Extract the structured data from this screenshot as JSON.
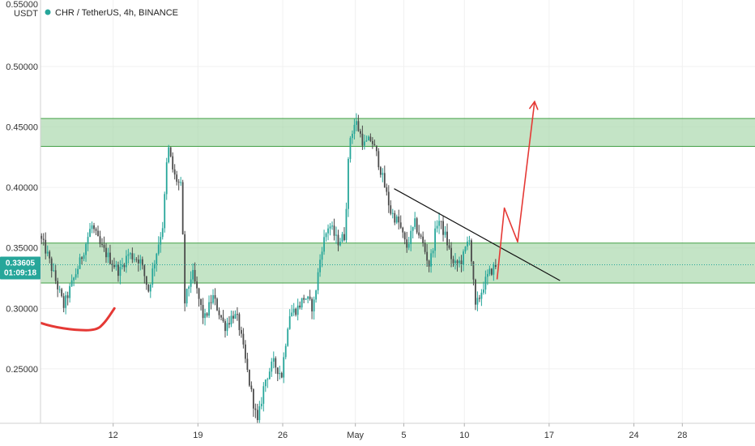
{
  "symbol_title": "CHR / TetherUS, 4h, BINANCE",
  "y_axis_unit": "USDT",
  "y_axis_top_label": "0.55000",
  "current_price": "0.33605",
  "countdown": "01:09:18",
  "colors": {
    "up": "#26a69a",
    "down": "#4a4a4a",
    "zone_fill": "#a5d6a7",
    "zone_line": "#43a047",
    "price_tag": "#26a69a",
    "trendline": "#111111",
    "arrow": "#e53935"
  },
  "chart_data": {
    "type": "candlestick",
    "title": "CHR / TetherUS, 4h, BINANCE",
    "ylabel": "USDT",
    "ylim": [
      0.205,
      0.555
    ],
    "y_ticks": [
      0.25,
      0.3,
      0.35,
      0.4,
      0.45,
      0.5
    ],
    "y_tick_labels": [
      "0.25000",
      "0.30000",
      "0.35000",
      "0.40000",
      "0.45000",
      "0.50000"
    ],
    "x_ticks": [
      "12",
      "19",
      "26",
      "May",
      "5",
      "10",
      "17",
      "24",
      "28"
    ],
    "x_tick_days": [
      12,
      19,
      26,
      32,
      36,
      41,
      48,
      55,
      59
    ],
    "x_range_days": [
      6.0,
      65.0
    ],
    "last_price": 0.33605,
    "zones": [
      {
        "from": 0.434,
        "to": 0.457
      },
      {
        "from": 0.321,
        "to": 0.354
      }
    ],
    "trendline": [
      [
        35.2,
        0.399
      ],
      [
        48.9,
        0.323
      ]
    ],
    "anchors": [
      [
        6.0,
        0.36
      ],
      [
        6.6,
        0.346
      ],
      [
        8.0,
        0.302
      ],
      [
        9.4,
        0.34
      ],
      [
        10.3,
        0.369
      ],
      [
        11.0,
        0.352
      ],
      [
        12.6,
        0.33
      ],
      [
        13.3,
        0.345
      ],
      [
        14.3,
        0.34
      ],
      [
        15.0,
        0.315
      ],
      [
        15.6,
        0.344
      ],
      [
        16.2,
        0.37
      ],
      [
        16.6,
        0.435
      ],
      [
        17.1,
        0.41
      ],
      [
        17.7,
        0.4
      ],
      [
        18.0,
        0.305
      ],
      [
        18.6,
        0.33
      ],
      [
        19.6,
        0.29
      ],
      [
        20.3,
        0.31
      ],
      [
        21.3,
        0.285
      ],
      [
        22.0,
        0.295
      ],
      [
        22.4,
        0.29
      ],
      [
        23.3,
        0.24
      ],
      [
        24.0,
        0.205
      ],
      [
        24.6,
        0.24
      ],
      [
        25.3,
        0.255
      ],
      [
        26.0,
        0.245
      ],
      [
        26.6,
        0.295
      ],
      [
        27.3,
        0.3
      ],
      [
        27.9,
        0.31
      ],
      [
        28.6,
        0.3
      ],
      [
        29.3,
        0.35
      ],
      [
        29.9,
        0.37
      ],
      [
        30.6,
        0.355
      ],
      [
        31.2,
        0.36
      ],
      [
        31.6,
        0.44
      ],
      [
        32.1,
        0.455
      ],
      [
        32.8,
        0.435
      ],
      [
        33.4,
        0.44
      ],
      [
        33.9,
        0.425
      ],
      [
        34.4,
        0.405
      ],
      [
        35.0,
        0.38
      ],
      [
        35.7,
        0.37
      ],
      [
        36.3,
        0.35
      ],
      [
        37.0,
        0.37
      ],
      [
        37.6,
        0.355
      ],
      [
        38.2,
        0.335
      ],
      [
        38.9,
        0.375
      ],
      [
        39.5,
        0.36
      ],
      [
        40.2,
        0.335
      ],
      [
        40.9,
        0.34
      ],
      [
        41.5,
        0.36
      ],
      [
        42.0,
        0.3
      ],
      [
        42.7,
        0.32
      ],
      [
        43.2,
        0.33
      ],
      [
        43.7,
        0.336
      ]
    ],
    "projection": {
      "points": [
        [
          43.7,
          0.324
        ],
        [
          44.3,
          0.383
        ],
        [
          45.4,
          0.355
        ],
        [
          46.8,
          0.471
        ]
      ]
    },
    "support_curve": {
      "points": [
        [
          6.0,
          0.288
        ],
        [
          6.9,
          0.285
        ],
        [
          8.9,
          0.282
        ],
        [
          10.6,
          0.282
        ],
        [
          11.3,
          0.288
        ],
        [
          12.1,
          0.3
        ]
      ]
    }
  }
}
